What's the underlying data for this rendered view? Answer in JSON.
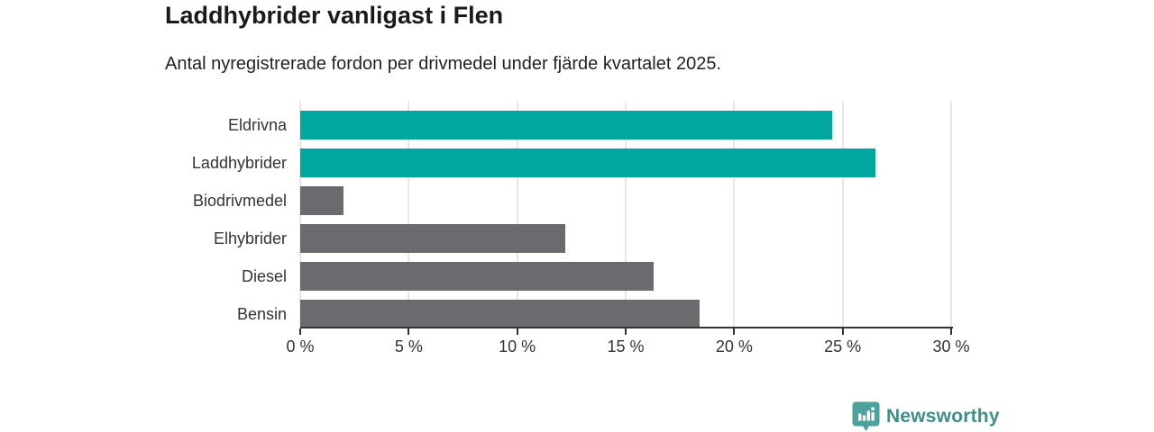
{
  "chart_data": {
    "type": "bar",
    "orientation": "horizontal",
    "title": "Laddhybrider vanligast i Flen",
    "subtitle": "Antal nyregistrerade fordon per drivmedel under fjärde kvartalet 2025.",
    "categories": [
      "Eldrivna",
      "Laddhybrider",
      "Biodrivmedel",
      "Elhybrider",
      "Diesel",
      "Bensin"
    ],
    "values": [
      24.5,
      26.5,
      2.0,
      12.2,
      16.3,
      18.4
    ],
    "value_unit": "%",
    "bar_colors": [
      "#00A79C",
      "#00A79C",
      "#6B6A6F",
      "#6B6A6F",
      "#6B6A6F",
      "#6B6A6F"
    ],
    "highlight_color": "#00A79C",
    "default_bar_color": "#6B6A6F",
    "xlim": [
      0,
      30
    ],
    "x_ticks": [
      {
        "value": 0,
        "label": "0 %"
      },
      {
        "value": 5,
        "label": "5 %"
      },
      {
        "value": 10,
        "label": "10 %"
      },
      {
        "value": 15,
        "label": "15 %"
      },
      {
        "value": 20,
        "label": "20 %"
      },
      {
        "value": 25,
        "label": "25 %"
      },
      {
        "value": 30,
        "label": "30 %"
      }
    ],
    "grid": true,
    "gridline_color": "#E7E7E7",
    "axis_color": "#333333",
    "legend": "none"
  },
  "branding": {
    "logo_text": "Newsworthy",
    "logo_icon": "bar-chart-speech-bubble-icon",
    "logo_icon_color": "#4BA19B",
    "logo_text_color": "#3E8E89"
  }
}
